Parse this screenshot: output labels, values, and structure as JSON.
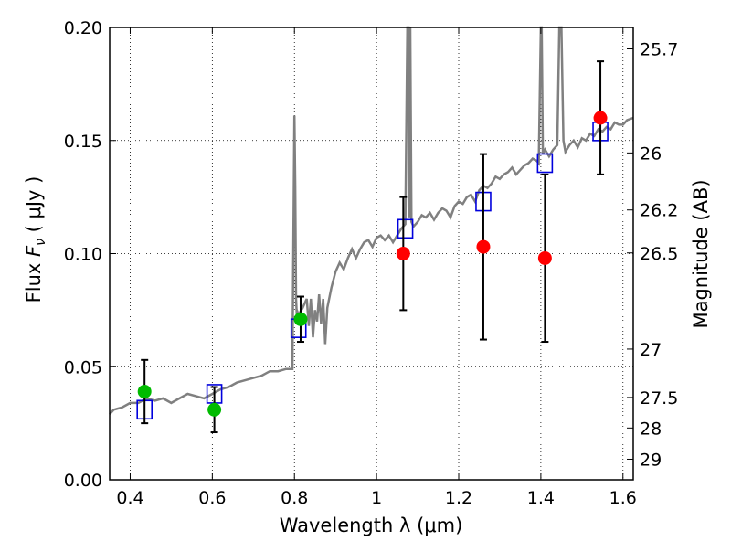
{
  "chart_data": {
    "type": "scatter",
    "xlabel": "Wavelength  λ (μm)",
    "ylabel_left_prefix": "Flux  ",
    "ylabel_left_symbol": "F",
    "ylabel_left_sub": "ν",
    "ylabel_left_unit": "  ( μJy )",
    "ylabel_right": "Magnitude (AB)",
    "xlim": [
      0.35,
      1.625
    ],
    "ylim": [
      0.0,
      0.2
    ],
    "grid": true,
    "x_ticks": [
      {
        "value": 0.4,
        "label": "0.4"
      },
      {
        "value": 0.6,
        "label": "0.6"
      },
      {
        "value": 0.8,
        "label": "0.8"
      },
      {
        "value": 1.0,
        "label": "1"
      },
      {
        "value": 1.2,
        "label": "1.2"
      },
      {
        "value": 1.4,
        "label": "1.4"
      },
      {
        "value": 1.6,
        "label": "1.6"
      }
    ],
    "y_ticks": [
      {
        "value": 0.0,
        "label": "0.00"
      },
      {
        "value": 0.05,
        "label": "0.05"
      },
      {
        "value": 0.1,
        "label": "0.10"
      },
      {
        "value": 0.15,
        "label": "0.15"
      },
      {
        "value": 0.2,
        "label": "0.20"
      }
    ],
    "mag_ticks": [
      {
        "value": 0.1905,
        "label": "25.7"
      },
      {
        "value": 0.1445,
        "label": "26"
      },
      {
        "value": 0.1193,
        "label": "26.2"
      },
      {
        "value": 0.1003,
        "label": "26.5"
      },
      {
        "value": 0.0578,
        "label": "27"
      },
      {
        "value": 0.0364,
        "label": "27.5"
      },
      {
        "value": 0.0229,
        "label": "28"
      },
      {
        "value": 0.0091,
        "label": "29"
      }
    ],
    "colors": {
      "spectrum": "#808080",
      "model": "#0000dd",
      "green": "#00bb00",
      "red": "#ff0000",
      "errorbar": "#000000"
    },
    "spectrum": {
      "x": [
        0.35,
        0.36,
        0.38,
        0.4,
        0.42,
        0.44,
        0.46,
        0.48,
        0.5,
        0.52,
        0.54,
        0.56,
        0.58,
        0.6,
        0.62,
        0.64,
        0.66,
        0.68,
        0.7,
        0.72,
        0.74,
        0.76,
        0.78,
        0.795,
        0.8,
        0.802,
        0.804,
        0.806,
        0.808,
        0.81,
        0.82,
        0.83,
        0.835,
        0.84,
        0.845,
        0.85,
        0.855,
        0.86,
        0.865,
        0.87,
        0.875,
        0.88,
        0.89,
        0.9,
        0.91,
        0.92,
        0.93,
        0.94,
        0.95,
        0.96,
        0.97,
        0.98,
        0.99,
        1.0,
        1.01,
        1.02,
        1.03,
        1.04,
        1.05,
        1.06,
        1.07,
        1.075,
        1.078,
        1.08,
        1.082,
        1.085,
        1.09,
        1.1,
        1.11,
        1.12,
        1.13,
        1.14,
        1.15,
        1.16,
        1.17,
        1.18,
        1.19,
        1.2,
        1.21,
        1.22,
        1.23,
        1.24,
        1.25,
        1.26,
        1.27,
        1.28,
        1.29,
        1.3,
        1.31,
        1.32,
        1.33,
        1.34,
        1.35,
        1.36,
        1.37,
        1.38,
        1.39,
        1.395,
        1.4,
        1.402,
        1.405,
        1.41,
        1.42,
        1.43,
        1.44,
        1.445,
        1.45,
        1.455,
        1.46,
        1.47,
        1.48,
        1.49,
        1.5,
        1.51,
        1.52,
        1.53,
        1.54,
        1.55,
        1.56,
        1.57,
        1.58,
        1.59,
        1.6,
        1.61,
        1.625
      ],
      "y": [
        0.029,
        0.031,
        0.032,
        0.034,
        0.034,
        0.036,
        0.035,
        0.036,
        0.034,
        0.036,
        0.038,
        0.037,
        0.036,
        0.038,
        0.04,
        0.041,
        0.043,
        0.044,
        0.045,
        0.046,
        0.048,
        0.048,
        0.049,
        0.049,
        0.161,
        0.13,
        0.08,
        0.072,
        0.074,
        0.073,
        0.076,
        0.08,
        0.068,
        0.08,
        0.063,
        0.075,
        0.07,
        0.082,
        0.069,
        0.08,
        0.06,
        0.076,
        0.085,
        0.092,
        0.096,
        0.093,
        0.098,
        0.102,
        0.098,
        0.102,
        0.105,
        0.106,
        0.103,
        0.107,
        0.108,
        0.106,
        0.108,
        0.105,
        0.108,
        0.111,
        0.113,
        0.2,
        0.2,
        0.116,
        0.2,
        0.114,
        0.112,
        0.114,
        0.117,
        0.116,
        0.118,
        0.115,
        0.118,
        0.12,
        0.119,
        0.116,
        0.121,
        0.123,
        0.122,
        0.125,
        0.126,
        0.123,
        0.128,
        0.13,
        0.129,
        0.131,
        0.134,
        0.133,
        0.135,
        0.136,
        0.138,
        0.135,
        0.137,
        0.139,
        0.14,
        0.142,
        0.141,
        0.14,
        0.2,
        0.2,
        0.144,
        0.146,
        0.143,
        0.146,
        0.148,
        0.2,
        0.2,
        0.15,
        0.145,
        0.148,
        0.15,
        0.147,
        0.151,
        0.15,
        0.153,
        0.152,
        0.155,
        0.154,
        0.156,
        0.155,
        0.158,
        0.157,
        0.157,
        0.159,
        0.16
      ]
    },
    "model_points": {
      "x": [
        0.435,
        0.605,
        0.81,
        1.07,
        1.26,
        1.41,
        1.545
      ],
      "y": [
        0.031,
        0.038,
        0.067,
        0.111,
        0.123,
        0.14,
        0.154
      ]
    },
    "green_points": {
      "x": [
        0.435,
        0.605,
        0.815
      ],
      "y": [
        0.039,
        0.031,
        0.071
      ],
      "yerr": [
        0.014,
        0.01,
        0.01
      ]
    },
    "red_points": {
      "x": [
        1.065,
        1.26,
        1.41,
        1.545
      ],
      "y": [
        0.1,
        0.103,
        0.098,
        0.16
      ],
      "yerr": [
        0.025,
        0.041,
        0.037,
        0.025
      ]
    }
  }
}
